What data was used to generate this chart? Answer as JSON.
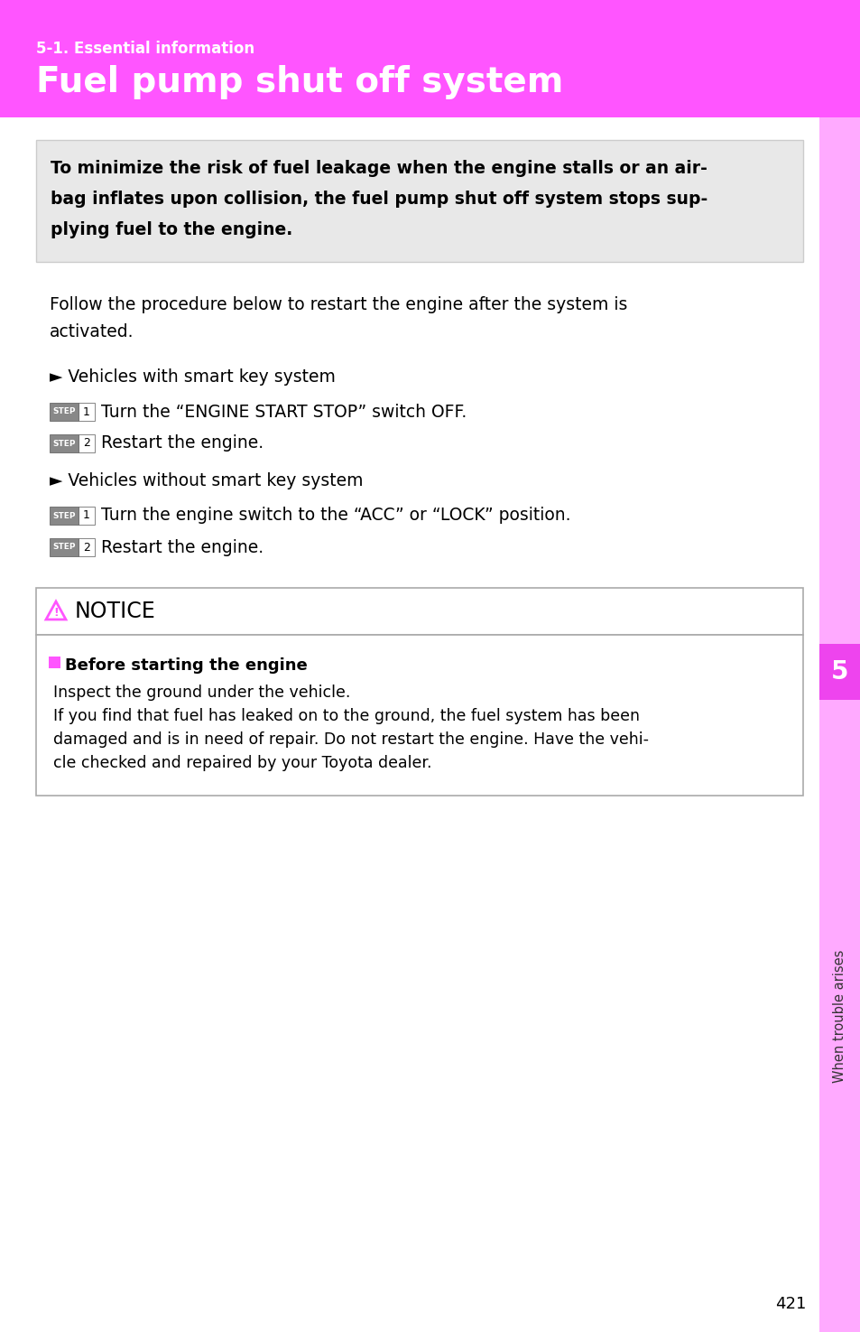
{
  "page_bg": "#ffffff",
  "header_bg": "#ff55ff",
  "header_subtitle": "5-1. Essential information",
  "header_title": "Fuel pump shut off system",
  "header_text_color": "#ffffff",
  "sidebar_bg": "#ffaaff",
  "sidebar_dark_bg": "#ee44ee",
  "sidebar_text": "When trouble arises",
  "sidebar_number": "5",
  "page_number": "421",
  "warning_box_bg": "#e8e8e8",
  "warning_lines": [
    "To minimize the risk of fuel leakage when the engine stalls or an air-",
    "bag inflates upon collision, the fuel pump shut off system stops sup-",
    "plying fuel to the engine."
  ],
  "intro_lines": [
    "Follow the procedure below to restart the engine after the system is",
    "activated."
  ],
  "section1_header": "► Vehicles with smart key system",
  "step1a_num": "1",
  "step1a_text": "Turn the “ENGINE START STOP” switch OFF.",
  "step1b_num": "2",
  "step1b_text": "Restart the engine.",
  "section2_header": "► Vehicles without smart key system",
  "step2a_num": "1",
  "step2a_text": "Turn the engine switch to the “ACC” or “LOCK” position.",
  "step2b_num": "2",
  "step2b_text": "Restart the engine.",
  "notice_title": "NOTICE",
  "notice_section": "Before starting the engine",
  "notice_body1": "Inspect the ground under the vehicle.",
  "notice_body2_lines": [
    "If you find that fuel has leaked on to the ground, the fuel system has been",
    "damaged and is in need of repair. Do not restart the engine. Have the vehi-",
    "cle checked and repaired by your Toyota dealer."
  ],
  "pink_color": "#ff55ff",
  "step_bg": "#888888",
  "body_text_color": "#000000",
  "notice_border": "#aaaaaa"
}
